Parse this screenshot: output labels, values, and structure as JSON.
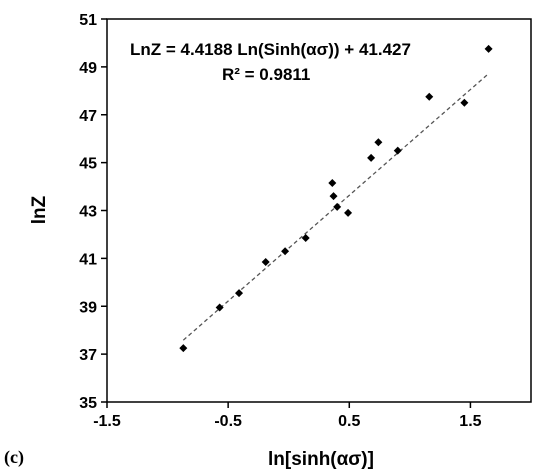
{
  "chart_data": {
    "type": "scatter",
    "panel_label": "(c)",
    "xlabel": "ln[sinh(ασ)]",
    "ylabel": "lnZ",
    "xlim": [
      -1.5,
      2.0
    ],
    "ylim": [
      35,
      51
    ],
    "x_ticks": [
      -1.5,
      -0.5,
      0.5,
      1.5
    ],
    "x_tick_labels": [
      "-1.5",
      "-0.5",
      "0.5",
      "1.5"
    ],
    "y_ticks": [
      35,
      37,
      39,
      41,
      43,
      45,
      47,
      49,
      51
    ],
    "y_tick_labels": [
      "35",
      "37",
      "39",
      "41",
      "43",
      "45",
      "47",
      "49",
      "51"
    ],
    "grid": false,
    "legend": "none",
    "series": [
      {
        "marker": "diamond",
        "color": "#000000",
        "x": [
          -0.87,
          -0.57,
          -0.41,
          -0.19,
          -0.03,
          0.14,
          0.36,
          0.37,
          0.4,
          0.49,
          0.68,
          0.74,
          0.9,
          1.16,
          1.45,
          1.65
        ],
        "y": [
          37.25,
          38.95,
          39.55,
          40.85,
          41.3,
          41.85,
          44.15,
          43.6,
          43.15,
          42.9,
          45.2,
          45.85,
          45.5,
          47.75,
          47.5,
          49.75
        ]
      }
    ],
    "trendline": {
      "style": "dashed",
      "color": "#555555",
      "slope": 4.4188,
      "intercept": 41.427,
      "x_range": [
        -0.87,
        1.65
      ]
    },
    "annotations": {
      "equation": "LnZ = 4.4188 Ln(Sinh(ασ)) + 41.427",
      "r_squared": "R² = 0.9811"
    }
  }
}
